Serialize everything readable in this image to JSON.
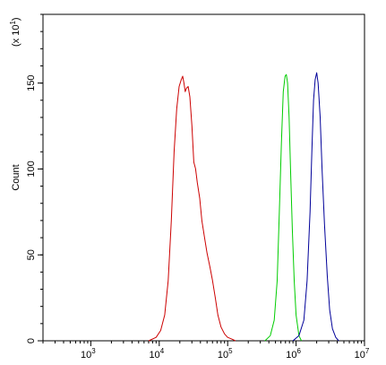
{
  "chart_data": {
    "type": "line",
    "title": "",
    "xlabel": "",
    "ylabel": "Count",
    "y_multiplier_label": "(x 10",
    "y_multiplier_exp": "1",
    "y_multiplier_close": ")",
    "x_scale": "log",
    "xlim": [
      200,
      10000000
    ],
    "ylim": [
      0,
      190
    ],
    "x_ticks": [
      {
        "value": 1000,
        "base": "10",
        "exp": "3"
      },
      {
        "value": 10000,
        "base": "10",
        "exp": "4"
      },
      {
        "value": 100000,
        "base": "10",
        "exp": "5"
      },
      {
        "value": 1000000,
        "base": "10",
        "exp": "6"
      },
      {
        "value": 10000000,
        "base": "10",
        "exp": "7"
      }
    ],
    "y_ticks": [
      0,
      50,
      100,
      150
    ],
    "y_tick_labels": [
      "0",
      "50",
      "100",
      "150"
    ],
    "grid": false,
    "legend": "none",
    "series": [
      {
        "color": "#cc0000",
        "x": [
          7000,
          9000,
          10500,
          12000,
          13500,
          15000,
          16500,
          18000,
          19500,
          21000,
          22000,
          23000,
          24000,
          25000,
          26500,
          28000,
          30000,
          32000,
          34000,
          36000,
          39000,
          42000,
          46000,
          50000,
          55000,
          60000,
          66000,
          72000,
          80000,
          90000,
          100000,
          115000,
          130000
        ],
        "y": [
          0,
          2,
          6,
          15,
          35,
          70,
          110,
          135,
          148,
          152,
          154,
          150,
          145,
          147,
          148,
          142,
          125,
          104,
          100,
          92,
          83,
          70,
          60,
          51,
          43,
          35,
          25,
          15,
          8,
          4,
          2,
          1,
          0
        ]
      },
      {
        "color": "#00cc00",
        "x": [
          350000,
          420000,
          480000,
          530000,
          570000,
          610000,
          650000,
          690000,
          720000,
          750000,
          790000,
          830000,
          880000,
          940000,
          1000000,
          1100000,
          1200000
        ],
        "y": [
          0,
          3,
          12,
          35,
          75,
          115,
          145,
          154,
          155,
          150,
          130,
          100,
          65,
          35,
          15,
          3,
          0
        ]
      },
      {
        "color": "#000099",
        "x": [
          900000,
          1100000,
          1300000,
          1450000,
          1600000,
          1700000,
          1800000,
          1900000,
          2000000,
          2100000,
          2250000,
          2400000,
          2600000,
          2850000,
          3100000,
          3400000,
          3800000,
          4200000
        ],
        "y": [
          0,
          3,
          12,
          35,
          75,
          110,
          140,
          152,
          156,
          150,
          130,
          100,
          68,
          38,
          18,
          7,
          2,
          0
        ]
      }
    ]
  }
}
